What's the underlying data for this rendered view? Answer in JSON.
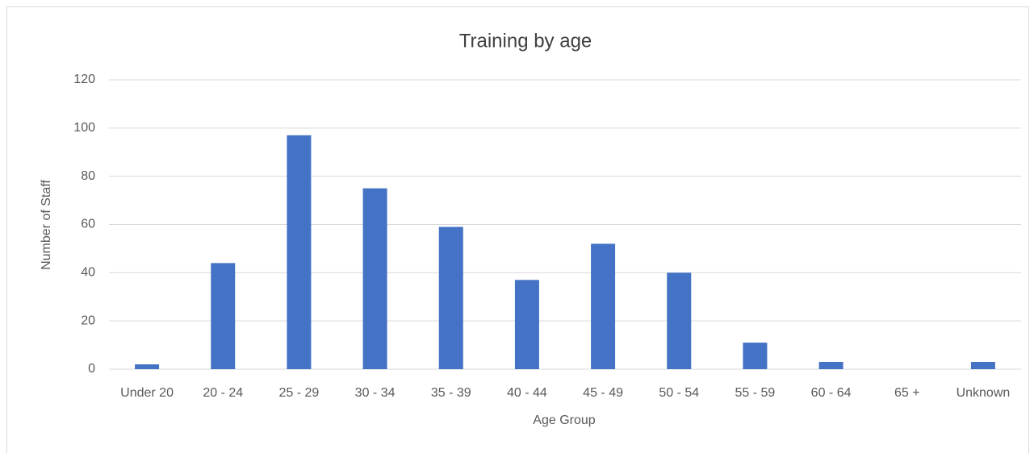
{
  "chart_data": {
    "type": "bar",
    "title": "Training by age",
    "x_label": "Age Group",
    "y_label": "Number of Staff",
    "categories": [
      "Under 20",
      "20 - 24",
      "25 - 29",
      "30 - 34",
      "35 - 39",
      "40 - 44",
      "45 - 49",
      "50 - 54",
      "55 - 59",
      "60 - 64",
      "65 +",
      "Unknown"
    ],
    "values": [
      2,
      44,
      97,
      75,
      59,
      37,
      52,
      40,
      11,
      3,
      0,
      3
    ],
    "color": "#4472c4",
    "ylim": [
      0,
      120
    ],
    "yticks": [
      0,
      20,
      40,
      60,
      80,
      100,
      120
    ],
    "grid": true
  }
}
